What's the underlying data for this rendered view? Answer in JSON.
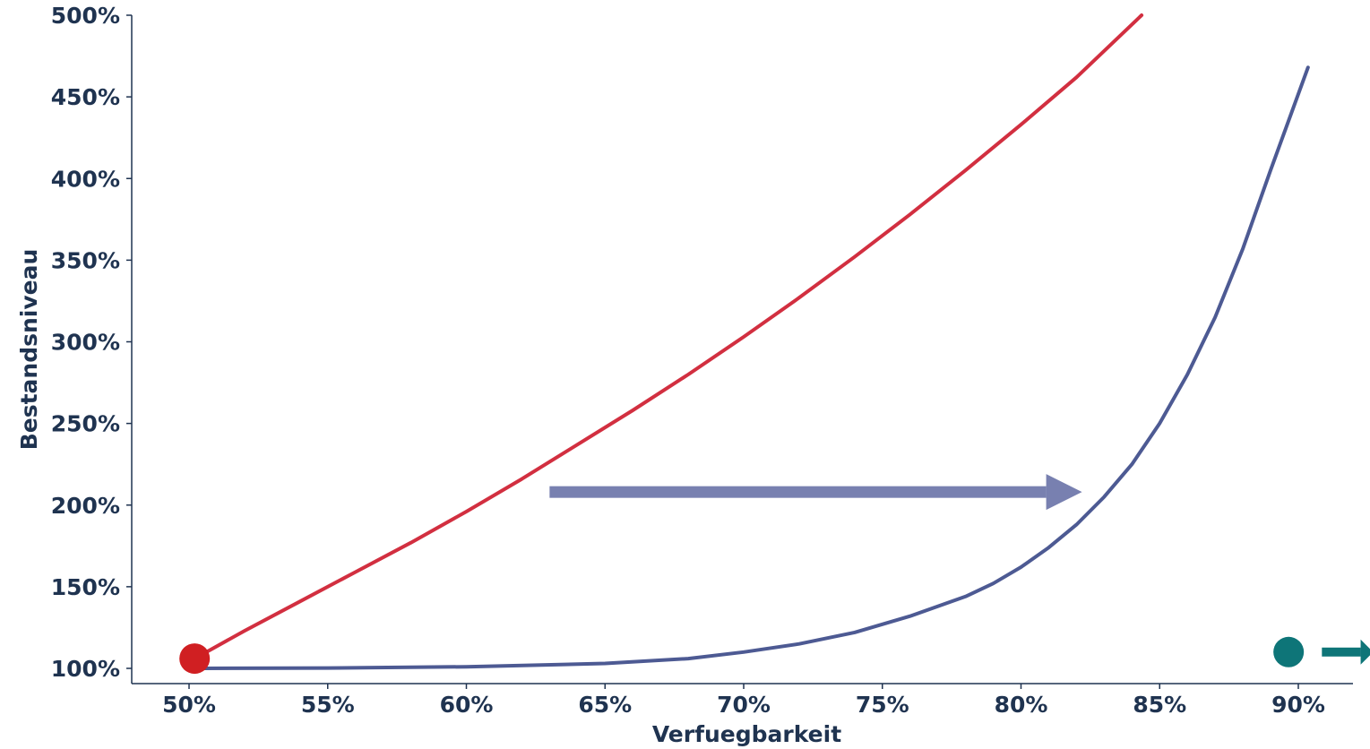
{
  "chart_data": {
    "type": "line",
    "xlabel": "Verfuegbarkeit",
    "ylabel": "Bestandsniveau",
    "xlim": [
      0.478,
      0.92
    ],
    "ylim": [
      0.91,
      5.0
    ],
    "x_ticks": [
      {
        "value": 0.5,
        "label": "50%"
      },
      {
        "value": 0.55,
        "label": "55%"
      },
      {
        "value": 0.6,
        "label": "60%"
      },
      {
        "value": 0.65,
        "label": "65%"
      },
      {
        "value": 0.7,
        "label": "70%"
      },
      {
        "value": 0.75,
        "label": "75%"
      },
      {
        "value": 0.8,
        "label": "80%"
      },
      {
        "value": 0.85,
        "label": "85%"
      },
      {
        "value": 0.9,
        "label": "90%"
      }
    ],
    "y_ticks": [
      {
        "value": 1.0,
        "label": "100%"
      },
      {
        "value": 1.5,
        "label": "150%"
      },
      {
        "value": 2.0,
        "label": "200%"
      },
      {
        "value": 2.5,
        "label": "250%"
      },
      {
        "value": 3.0,
        "label": "300%"
      },
      {
        "value": 3.5,
        "label": "350%"
      },
      {
        "value": 4.0,
        "label": "400%"
      },
      {
        "value": 4.5,
        "label": "450%"
      },
      {
        "value": 5.0,
        "label": "500%"
      }
    ],
    "grid": false,
    "series": [
      {
        "color": "#d22f40",
        "points": [
          [
            0.502,
            1.06
          ],
          [
            0.52,
            1.23
          ],
          [
            0.54,
            1.41
          ],
          [
            0.56,
            1.59
          ],
          [
            0.58,
            1.77
          ],
          [
            0.6,
            1.96
          ],
          [
            0.62,
            2.16
          ],
          [
            0.64,
            2.37
          ],
          [
            0.66,
            2.58
          ],
          [
            0.68,
            2.8
          ],
          [
            0.7,
            3.03
          ],
          [
            0.72,
            3.27
          ],
          [
            0.74,
            3.52
          ],
          [
            0.76,
            3.78
          ],
          [
            0.78,
            4.05
          ],
          [
            0.8,
            4.33
          ],
          [
            0.82,
            4.62
          ],
          [
            0.8435,
            5.0
          ]
        ]
      },
      {
        "color": "#4d5a93",
        "points": [
          [
            0.505,
            1.0
          ],
          [
            0.55,
            1.002
          ],
          [
            0.6,
            1.01
          ],
          [
            0.65,
            1.03
          ],
          [
            0.68,
            1.06
          ],
          [
            0.7,
            1.1
          ],
          [
            0.72,
            1.15
          ],
          [
            0.74,
            1.22
          ],
          [
            0.76,
            1.32
          ],
          [
            0.78,
            1.44
          ],
          [
            0.79,
            1.52
          ],
          [
            0.8,
            1.62
          ],
          [
            0.81,
            1.74
          ],
          [
            0.82,
            1.88
          ],
          [
            0.83,
            2.05
          ],
          [
            0.84,
            2.25
          ],
          [
            0.85,
            2.5
          ],
          [
            0.86,
            2.8
          ],
          [
            0.87,
            3.15
          ],
          [
            0.88,
            3.57
          ],
          [
            0.89,
            4.05
          ],
          [
            0.9035,
            4.68
          ]
        ]
      }
    ],
    "markers": [
      {
        "name": "start-point-marker",
        "x": 0.502,
        "y": 1.06,
        "color": "#d01f22"
      },
      {
        "name": "target-point-marker",
        "x": 0.8965,
        "y": 1.1,
        "color": "#0e7578"
      }
    ],
    "annotations": [
      {
        "name": "shift-arrow",
        "x_from": 0.63,
        "x_to": 0.822,
        "y": 2.08,
        "color": "#7880b0"
      },
      {
        "name": "target-arrow",
        "x_from": 0.9085,
        "x_to": 0.927,
        "y": 1.1,
        "color": "#0e7578"
      }
    ]
  }
}
